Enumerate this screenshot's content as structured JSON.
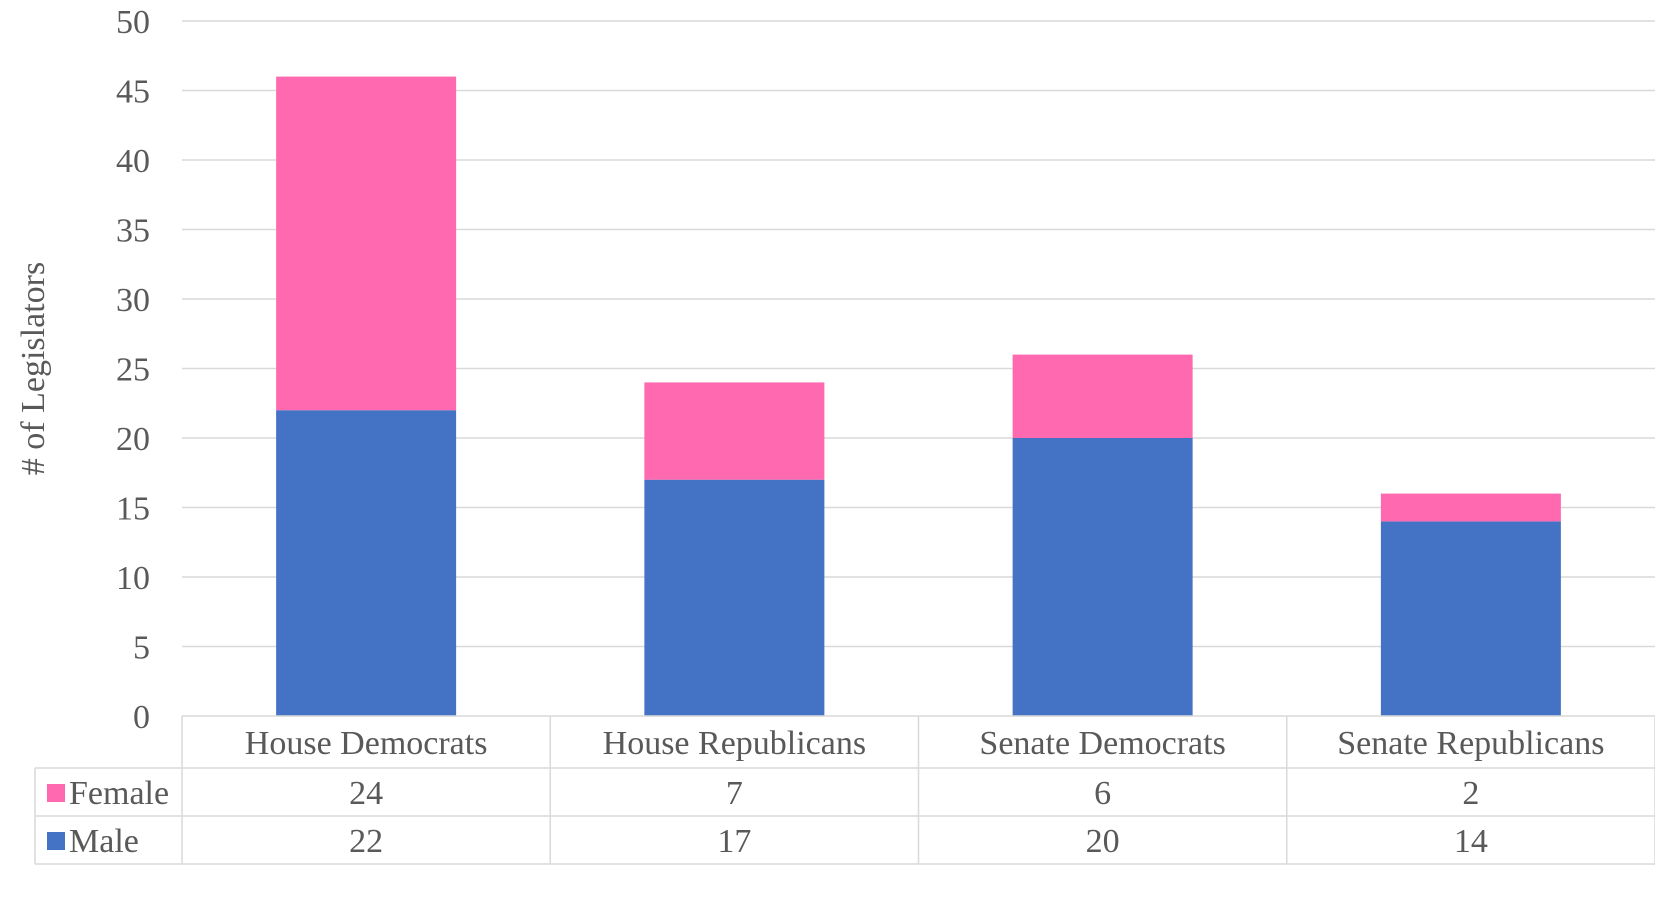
{
  "chart_data": {
    "type": "bar",
    "stacked": true,
    "ylabel": "# of Legislators",
    "ylim": [
      0,
      50
    ],
    "ytick_step": 5,
    "yticks": [
      "0",
      "5",
      "10",
      "15",
      "20",
      "25",
      "30",
      "35",
      "40",
      "45",
      "50"
    ],
    "grid": true,
    "legend": "data-table",
    "categories": [
      "House Democrats",
      "House Republicans",
      "Senate Democrats",
      "Senate Republicans"
    ],
    "series": [
      {
        "name": "Male",
        "values": [
          22,
          17,
          20,
          14
        ],
        "color": "#4472C4"
      },
      {
        "name": "Female",
        "values": [
          24,
          7,
          6,
          2
        ],
        "color": "#FF69AF"
      }
    ],
    "table_rows": [
      {
        "name": "Female",
        "values": [
          "24",
          "7",
          "6",
          "2"
        ],
        "color": "#FF69AF"
      },
      {
        "name": "Male",
        "values": [
          "22",
          "17",
          "20",
          "14"
        ],
        "color": "#4472C4"
      }
    ]
  }
}
